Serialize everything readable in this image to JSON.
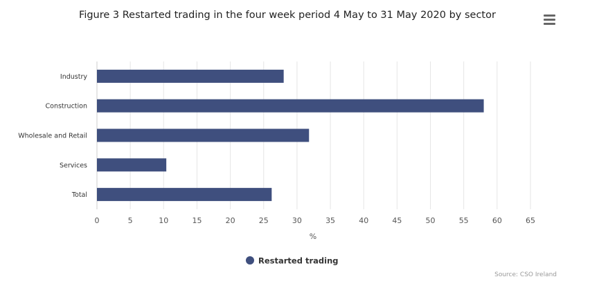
{
  "title": "Figure 3 Restarted trading in the four week period 4 May to 31 May 2020 by sector",
  "menu_icon": "hamburger-menu-icon",
  "source": "Source: CSO Ireland",
  "colors": {
    "bar": "#3f4f7e",
    "grid": "#e6e6e6",
    "text": "#333333"
  },
  "chart_data": {
    "type": "bar",
    "orientation": "horizontal",
    "categories": [
      "Industry",
      "Construction",
      "Wholesale and Retail",
      "Services",
      "Total"
    ],
    "series": [
      {
        "name": "Restarted trading",
        "values": [
          28,
          58,
          31.8,
          10.4,
          26.2
        ]
      }
    ],
    "xlabel": "%",
    "ylabel": "",
    "xlim": [
      0,
      65
    ],
    "xticks": [
      0,
      5,
      10,
      15,
      20,
      25,
      30,
      35,
      40,
      45,
      50,
      55,
      60,
      65
    ],
    "grid": true,
    "legend": "bottom-center"
  }
}
